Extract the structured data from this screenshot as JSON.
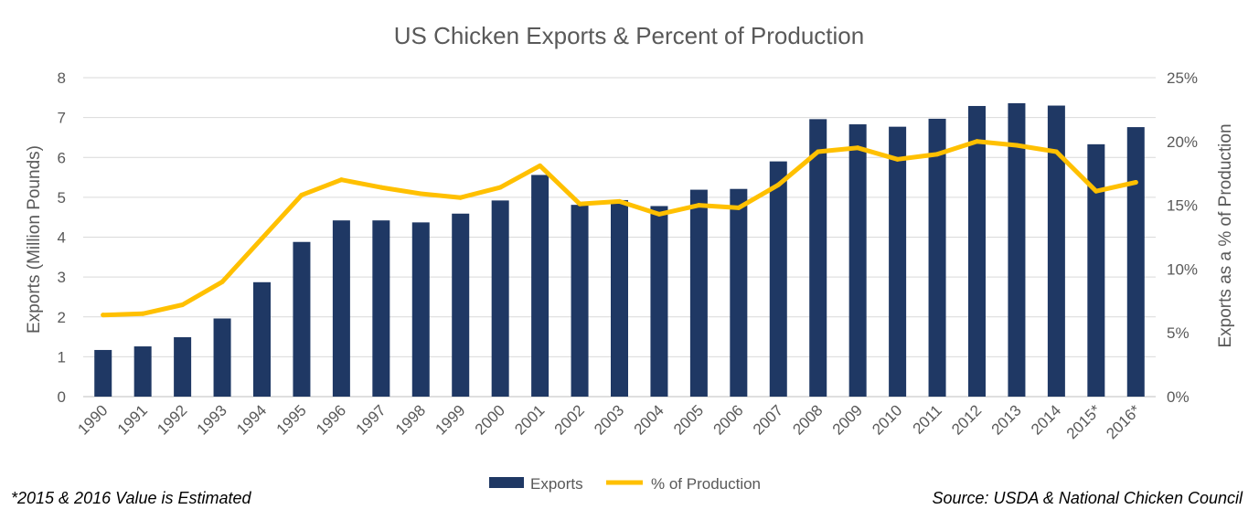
{
  "chart_data": {
    "type": "bar",
    "title": "US Chicken Exports & Percent of Production",
    "categories": [
      "1990",
      "1991",
      "1992",
      "1993",
      "1994",
      "1995",
      "1996",
      "1997",
      "1998",
      "1999",
      "2000",
      "2001",
      "2002",
      "2003",
      "2004",
      "2005",
      "2006",
      "2007",
      "2008",
      "2009",
      "2010",
      "2011",
      "2012",
      "2013",
      "2014",
      "2015*",
      "2016*"
    ],
    "series": [
      {
        "name": "Exports",
        "type": "bar",
        "axis": "left",
        "color": "#1f3864",
        "values": [
          1.17,
          1.26,
          1.49,
          1.96,
          2.87,
          3.88,
          4.42,
          4.42,
          4.37,
          4.59,
          4.92,
          5.56,
          4.81,
          4.93,
          4.78,
          5.19,
          5.21,
          5.9,
          6.96,
          6.83,
          6.77,
          6.97,
          7.29,
          7.36,
          7.3,
          6.33,
          6.76
        ]
      },
      {
        "name": "% of Production",
        "type": "line",
        "axis": "right",
        "color": "#ffc000",
        "values": [
          6.4,
          6.5,
          7.2,
          9.0,
          12.4,
          15.8,
          17.0,
          16.4,
          15.9,
          15.6,
          16.4,
          18.1,
          15.1,
          15.3,
          14.3,
          15.0,
          14.8,
          16.6,
          19.2,
          19.5,
          18.6,
          19.0,
          20.0,
          19.7,
          19.2,
          16.1,
          16.8
        ]
      }
    ],
    "ylabel": "Exports (Million Pounds)",
    "y2label": "Exports as a % of Production",
    "ylim": [
      0,
      8
    ],
    "yticks": [
      "0",
      "1",
      "2",
      "3",
      "4",
      "5",
      "6",
      "7",
      "8"
    ],
    "y2lim": [
      0,
      25
    ],
    "y2ticks": [
      "0%",
      "5%",
      "10%",
      "15%",
      "20%",
      "25%"
    ],
    "grid": true,
    "legend": "bottom"
  },
  "footnote": "*2015 & 2016 Value is Estimated",
  "source": "Source: USDA & National Chicken Council"
}
